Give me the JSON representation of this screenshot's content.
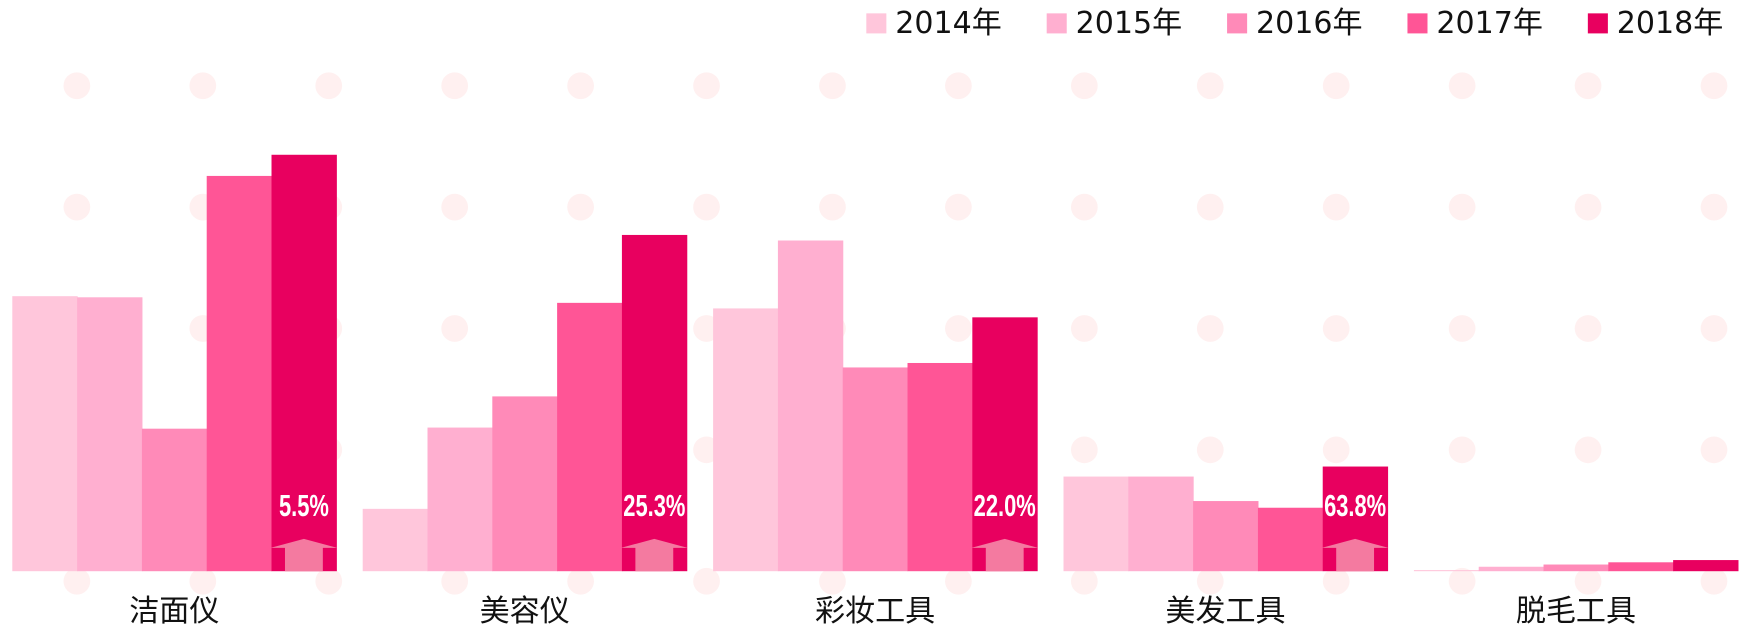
{
  "chart_data": {
    "type": "bar",
    "categories": [
      "洁面仪",
      "美容仪",
      "彩妆工具",
      "美发工具",
      "脱毛工具"
    ],
    "series": [
      {
        "name": "2014年",
        "color": "#ffc6db",
        "values": [
          247,
          56,
          236,
          85,
          1
        ]
      },
      {
        "name": "2015年",
        "color": "#ffafd0",
        "values": [
          246,
          129,
          297,
          85,
          4
        ]
      },
      {
        "name": "2016年",
        "color": "#ff8ab8",
        "values": [
          128,
          157,
          183,
          63,
          6
        ]
      },
      {
        "name": "2017年",
        "color": "#ff5596",
        "values": [
          355,
          241,
          187,
          57,
          8
        ]
      },
      {
        "name": "2018年",
        "color": "#e8005f",
        "values": [
          374,
          302,
          228,
          94,
          10
        ]
      }
    ],
    "growth": {
      "values": [
        5.5,
        25.3,
        22.0,
        63.8
      ],
      "value_labels": [
        "5.5%",
        "25.3%",
        "22.0%",
        "63.8%"
      ]
    },
    "ylim": [
      0,
      374
    ],
    "legend": "top-right"
  }
}
